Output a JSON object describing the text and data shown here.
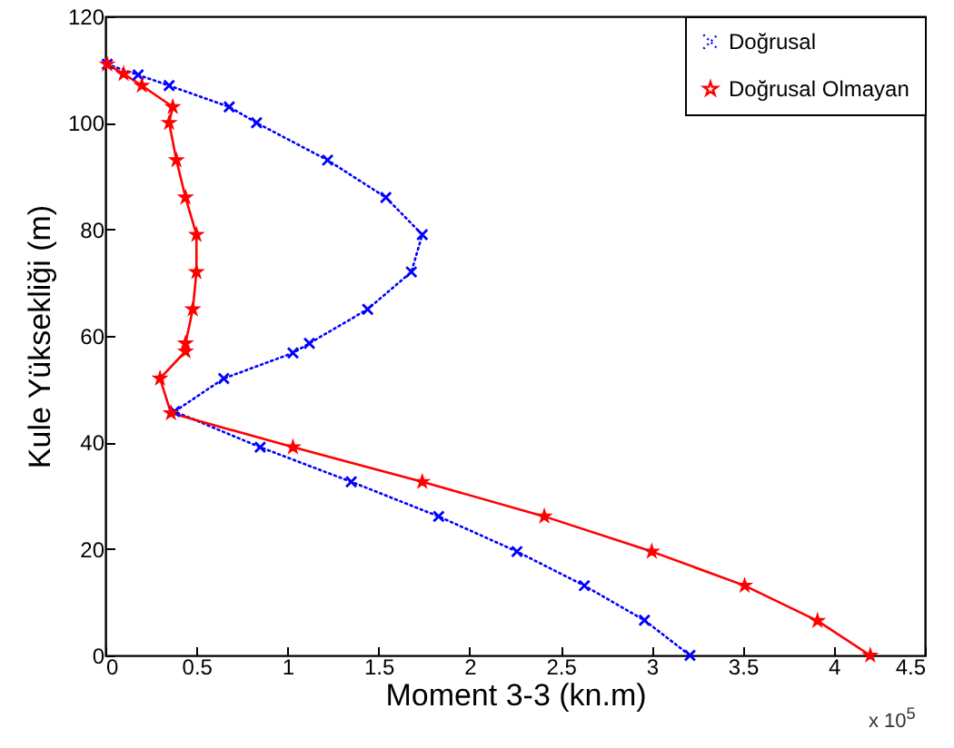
{
  "chart_data": {
    "type": "line",
    "xlabel": "Moment 3-3 (kn.m)",
    "ylabel": "Kule Yüksekliği (m)",
    "xlim": [
      0,
      4.5
    ],
    "xticks": [
      0,
      0.5,
      1,
      1.5,
      2,
      2.5,
      3,
      3.5,
      4,
      4.5
    ],
    "ylim": [
      0,
      120
    ],
    "yticks": [
      0,
      20,
      40,
      60,
      80,
      100,
      120
    ],
    "grid": false,
    "legend": "top right",
    "annotations": [
      "x 10$^{5}$"
    ],
    "series": [
      {
        "name": "Doğrusal",
        "color": "#0000ff",
        "marker": "cross",
        "line_style": "dotted",
        "x": [
          0.01,
          0.18,
          0.35,
          0.68,
          0.83,
          1.22,
          1.54,
          1.74,
          1.68,
          1.44,
          1.12,
          1.03,
          0.65,
          0.38,
          0.85,
          1.35,
          1.83,
          2.26,
          2.63,
          2.96,
          3.21
        ],
        "values": [
          111,
          109,
          107,
          103,
          100,
          93,
          86,
          79,
          72,
          65,
          58.6,
          56.8,
          52,
          45.8,
          39.1,
          32.6,
          26.1,
          19.5,
          13.1,
          6.6,
          0
        ]
      },
      {
        "name": "Doğrusal Olmayan",
        "color": "#ff0000",
        "marker": "star",
        "line_style": "solid",
        "x": [
          0.01,
          0.1,
          0.2,
          0.37,
          0.35,
          0.39,
          0.44,
          0.5,
          0.5,
          0.48,
          0.44,
          0.44,
          0.3,
          0.36,
          1.03,
          1.74,
          2.41,
          3.0,
          3.51,
          3.91,
          4.2
        ],
        "values": [
          111,
          109.2,
          107,
          103,
          100,
          93,
          86,
          79,
          72,
          65,
          58.6,
          57.1,
          52,
          45.5,
          39.1,
          32.6,
          26.1,
          19.5,
          13.1,
          6.5,
          0
        ]
      }
    ]
  }
}
